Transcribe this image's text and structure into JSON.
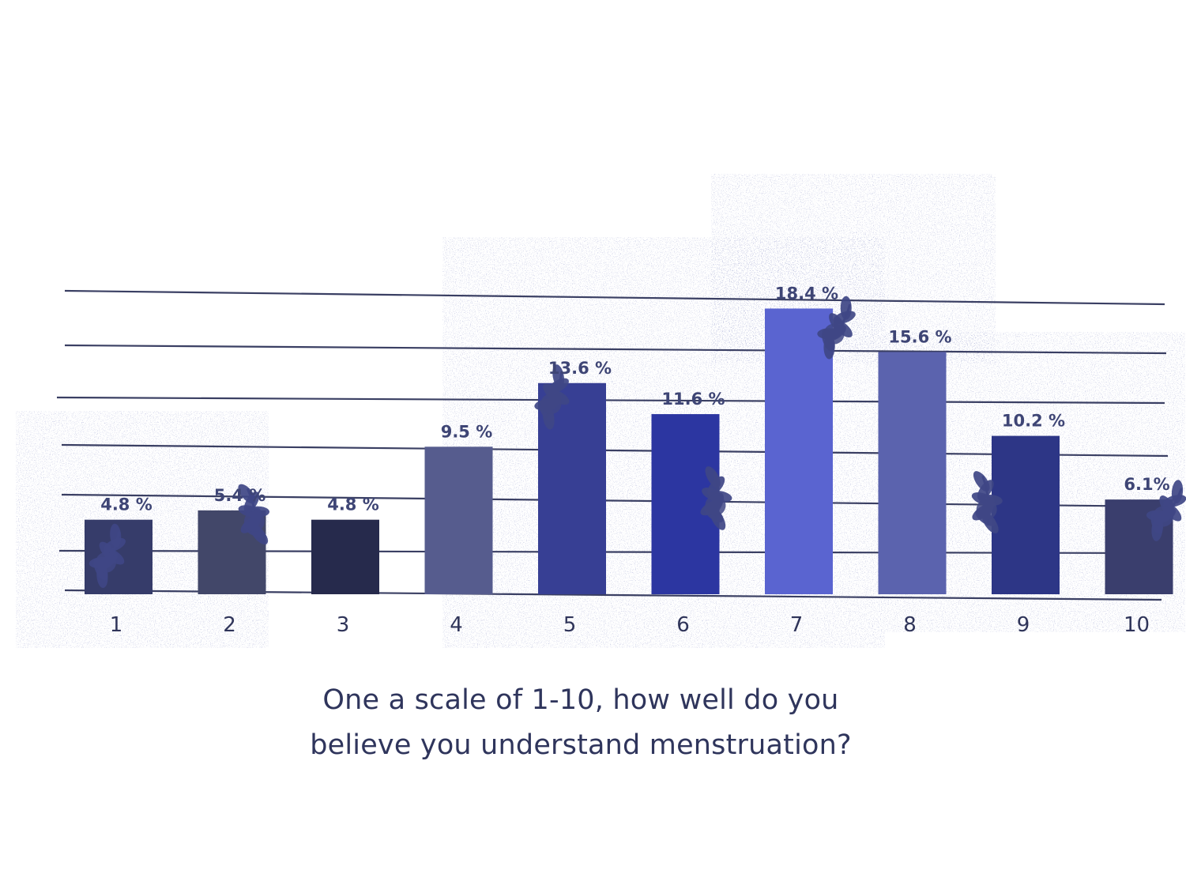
{
  "chart_data": {
    "type": "bar",
    "categories": [
      "1",
      "2",
      "3",
      "4",
      "5",
      "6",
      "7",
      "8",
      "9",
      "10"
    ],
    "values": [
      4.8,
      5.4,
      4.8,
      9.5,
      13.6,
      11.6,
      18.4,
      15.6,
      10.2,
      6.1
    ],
    "value_labels": [
      "4.8 %",
      "5.4 %",
      "4.8 %",
      "9.5 %",
      "13.6 %",
      "11.6 %",
      "18.4 %",
      "15.6 %",
      "10.2 %",
      "6.1%"
    ],
    "bar_colors": [
      "#363c6a",
      "#424769",
      "#262a4c",
      "#565c8e",
      "#373f94",
      "#2c36a1",
      "#5a64d0",
      "#5b63ae",
      "#2d3686",
      "#3a3e6d"
    ],
    "title": "",
    "xlabel": "",
    "ylabel": "",
    "ylim": [
      0,
      20
    ],
    "grid": true,
    "legend": "none"
  },
  "caption": {
    "line1": "One a scale of 1-10, how well do you",
    "line2": "believe you understand menstruation?"
  },
  "colors": {
    "grid": "#3a3f63",
    "text": "#2f355c",
    "leaf": "#3f4785"
  },
  "decoration": {
    "icon": "leaf-sprig-icon"
  }
}
